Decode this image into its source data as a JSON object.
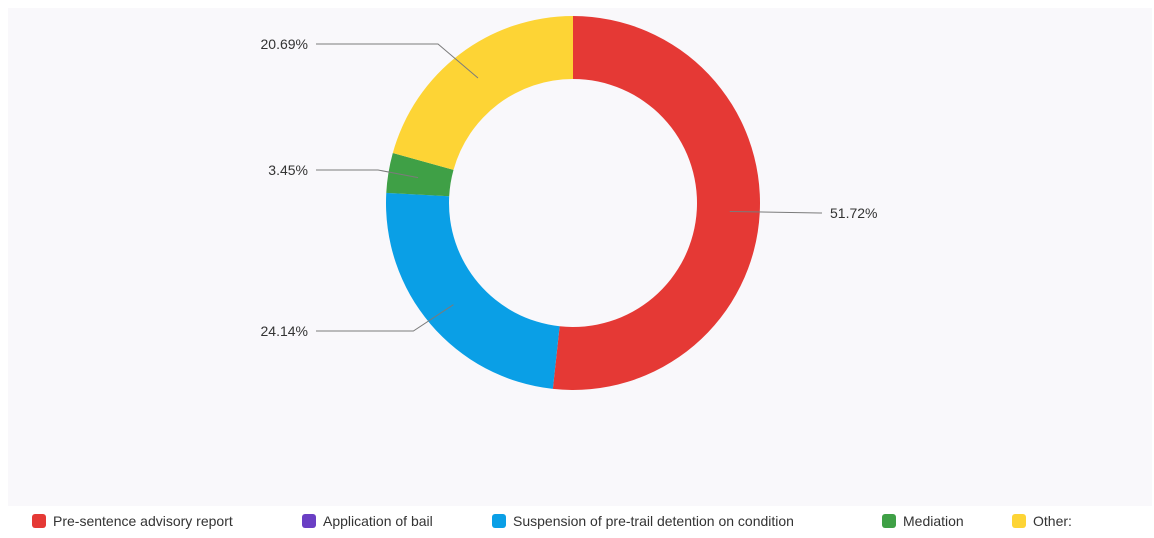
{
  "chart_data": {
    "type": "pie",
    "donut": true,
    "title": "",
    "categories": [
      "Pre-sentence advisory report",
      "Application of bail",
      "Suspension of pre-trail detention on condition",
      "Mediation",
      "Other:"
    ],
    "values": [
      51.72,
      0,
      24.14,
      3.45,
      20.69
    ],
    "value_labels": [
      "51.72%",
      "",
      "24.14%",
      "3.45%",
      "20.69%"
    ],
    "colors": [
      "#e53935",
      "#6a3fc4",
      "#0a9fe6",
      "#3fa046",
      "#fdd435"
    ],
    "legend_position": "bottom"
  }
}
